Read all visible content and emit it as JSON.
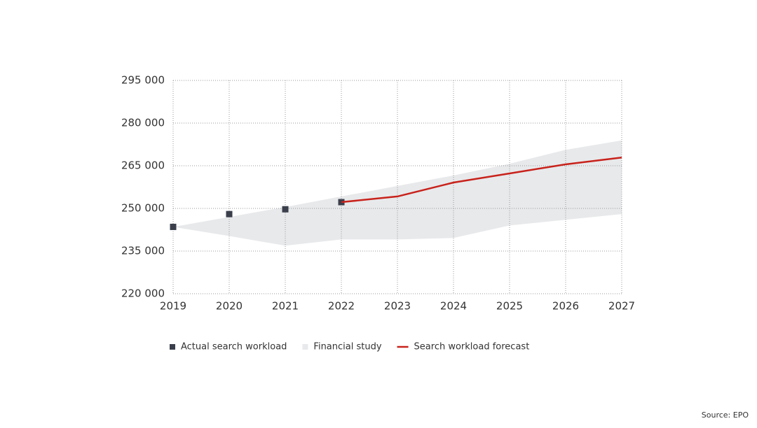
{
  "chart_data": {
    "type": "combo",
    "x": [
      2019,
      2020,
      2021,
      2022,
      2023,
      2024,
      2025,
      2026,
      2027
    ],
    "xlim": [
      2019,
      2027
    ],
    "ylim": [
      220000,
      295000
    ],
    "yticks": [
      {
        "value": 220000,
        "label": "220 000"
      },
      {
        "value": 235000,
        "label": "235 000"
      },
      {
        "value": 250000,
        "label": "250 000"
      },
      {
        "value": 265000,
        "label": "265 000"
      },
      {
        "value": 280000,
        "label": "280 000"
      },
      {
        "value": 295000,
        "label": "295 000"
      }
    ],
    "grid": true,
    "series": [
      {
        "name": "Actual search workload",
        "type": "scatter",
        "color": "#3a3f4b",
        "values": [
          243500,
          248000,
          249700,
          252200,
          null,
          null,
          null,
          null,
          null
        ]
      },
      {
        "name": "Financial study",
        "type": "band",
        "color": "#e8e9eb",
        "lower": [
          243500,
          240300,
          236900,
          239100,
          239100,
          239600,
          244000,
          246000,
          248000
        ],
        "upper": [
          243500,
          247000,
          250500,
          254200,
          257900,
          261600,
          265700,
          270600,
          273900
        ]
      },
      {
        "name": "Search workload forecast",
        "type": "line",
        "color": "#c8221b",
        "values": [
          null,
          null,
          null,
          252200,
          254200,
          259100,
          262300,
          265500,
          267900
        ]
      }
    ],
    "legend": "bottom",
    "source": "Source: EPO"
  }
}
